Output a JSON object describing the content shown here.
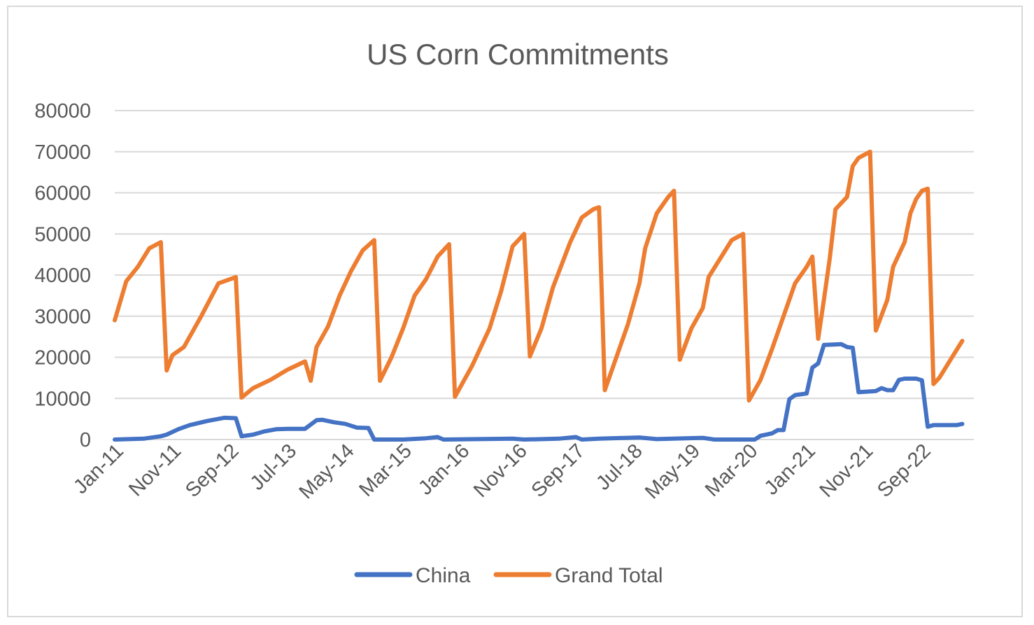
{
  "chart_data": {
    "type": "line",
    "title": "US Corn Commitments",
    "xlabel": "",
    "ylabel": "",
    "ylim": [
      0,
      80000
    ],
    "yticks": [
      0,
      10000,
      20000,
      30000,
      40000,
      50000,
      60000,
      70000,
      80000
    ],
    "x_tick_labels": [
      "Jan-11",
      "Nov-11",
      "Sep-12",
      "Jul-13",
      "May-14",
      "Mar-15",
      "Jan-16",
      "Nov-16",
      "Sep-17",
      "Jul-18",
      "May-19",
      "Mar-20",
      "Jan-21",
      "Nov-21",
      "Sep-22"
    ],
    "x_start": "Jan-11",
    "x_end": "Jun-23",
    "grid": true,
    "legend_position": "bottom",
    "series": [
      {
        "name": "China",
        "color": "#4472C4",
        "points": [
          [
            "Jan-11",
            0
          ],
          [
            "Jun-11",
            200
          ],
          [
            "Sep-11",
            800
          ],
          [
            "Oct-11",
            1200
          ],
          [
            "Dec-11",
            2500
          ],
          [
            "Feb-12",
            3500
          ],
          [
            "May-12",
            4500
          ],
          [
            "Aug-12",
            5300
          ],
          [
            "Oct-12",
            5200
          ],
          [
            "Nov-12",
            800
          ],
          [
            "Jan-13",
            1200
          ],
          [
            "Mar-13",
            2000
          ],
          [
            "May-13",
            2500
          ],
          [
            "Jul-13",
            2600
          ],
          [
            "Oct-13",
            2600
          ],
          [
            "Dec-13",
            4700
          ],
          [
            "Jan-14",
            4800
          ],
          [
            "Mar-14",
            4200
          ],
          [
            "May-14",
            3800
          ],
          [
            "Jul-14",
            2900
          ],
          [
            "Sep-14",
            2800
          ],
          [
            "Oct-14",
            0
          ],
          [
            "Mar-15",
            0
          ],
          [
            "Jul-15",
            300
          ],
          [
            "Sep-15",
            600
          ],
          [
            "Oct-15",
            0
          ],
          [
            "Oct-16",
            200
          ],
          [
            "Dec-16",
            0
          ],
          [
            "Jun-17",
            200
          ],
          [
            "Sep-17",
            600
          ],
          [
            "Oct-17",
            0
          ],
          [
            "Jan-18",
            200
          ],
          [
            "Aug-18",
            500
          ],
          [
            "Nov-18",
            100
          ],
          [
            "Apr-19",
            300
          ],
          [
            "Jul-19",
            400
          ],
          [
            "Sep-19",
            0
          ],
          [
            "Apr-20",
            0
          ],
          [
            "May-20",
            900
          ],
          [
            "Jul-20",
            1500
          ],
          [
            "Aug-20",
            2300
          ],
          [
            "Sep-20",
            2300
          ],
          [
            "Oct-20",
            9800
          ],
          [
            "Nov-20",
            10800
          ],
          [
            "Jan-21",
            11200
          ],
          [
            "Feb-21",
            17500
          ],
          [
            "Mar-21",
            18500
          ],
          [
            "Apr-21",
            23000
          ],
          [
            "Jul-21",
            23200
          ],
          [
            "Aug-21",
            22500
          ],
          [
            "Sep-21",
            22300
          ],
          [
            "Oct-21",
            11500
          ],
          [
            "Jan-22",
            11800
          ],
          [
            "Feb-22",
            12500
          ],
          [
            "Mar-22",
            12000
          ],
          [
            "Apr-22",
            12000
          ],
          [
            "May-22",
            14500
          ],
          [
            "Jun-22",
            14800
          ],
          [
            "Aug-22",
            14800
          ],
          [
            "Sep-22",
            14400
          ],
          [
            "Oct-22",
            3100
          ],
          [
            "Nov-22",
            3500
          ],
          [
            "Mar-23",
            3500
          ],
          [
            "Apr-23",
            3800
          ]
        ]
      },
      {
        "name": "Grand Total",
        "color": "#ED7D31",
        "points": [
          [
            "Jan-11",
            29000
          ],
          [
            "Mar-11",
            38500
          ],
          [
            "May-11",
            42000
          ],
          [
            "Jul-11",
            46500
          ],
          [
            "Sep-11",
            48000
          ],
          [
            "Oct-11",
            16800
          ],
          [
            "Nov-11",
            20500
          ],
          [
            "Jan-12",
            22500
          ],
          [
            "Apr-12",
            30000
          ],
          [
            "Jul-12",
            38000
          ],
          [
            "Sep-12",
            39000
          ],
          [
            "Oct-12",
            39500
          ],
          [
            "Nov-12",
            10200
          ],
          [
            "Jan-13",
            12500
          ],
          [
            "Apr-13",
            14500
          ],
          [
            "Jul-13",
            17000
          ],
          [
            "Oct-13",
            19000
          ],
          [
            "Nov-13",
            14300
          ],
          [
            "Dec-13",
            22500
          ],
          [
            "Feb-14",
            27500
          ],
          [
            "Apr-14",
            35000
          ],
          [
            "Jun-14",
            41000
          ],
          [
            "Aug-14",
            46000
          ],
          [
            "Oct-14",
            48500
          ],
          [
            "Nov-14",
            14300
          ],
          [
            "Jan-15",
            20000
          ],
          [
            "Mar-15",
            27000
          ],
          [
            "May-15",
            35000
          ],
          [
            "Jul-15",
            39000
          ],
          [
            "Sep-15",
            44500
          ],
          [
            "Nov-15",
            47500
          ],
          [
            "Dec-15",
            10400
          ],
          [
            "Mar-16",
            18000
          ],
          [
            "Jun-16",
            27000
          ],
          [
            "Aug-16",
            36000
          ],
          [
            "Oct-16",
            47000
          ],
          [
            "Dec-16",
            50000
          ],
          [
            "Jan-17",
            20200
          ],
          [
            "Mar-17",
            27000
          ],
          [
            "May-17",
            37000
          ],
          [
            "Aug-17",
            48000
          ],
          [
            "Oct-17",
            54000
          ],
          [
            "Dec-17",
            56000
          ],
          [
            "Jan-18",
            56500
          ],
          [
            "Feb-18",
            12000
          ],
          [
            "Apr-18",
            20000
          ],
          [
            "Jun-18",
            28000
          ],
          [
            "Aug-18",
            38000
          ],
          [
            "Sep-18",
            46500
          ],
          [
            "Nov-18",
            55000
          ],
          [
            "Jan-19",
            59000
          ],
          [
            "Feb-19",
            60500
          ],
          [
            "Mar-19",
            19400
          ],
          [
            "May-19",
            27000
          ],
          [
            "Jul-19",
            32000
          ],
          [
            "Aug-19",
            39500
          ],
          [
            "Oct-19",
            44000
          ],
          [
            "Dec-19",
            48500
          ],
          [
            "Feb-20",
            50000
          ],
          [
            "Mar-20",
            9500
          ],
          [
            "May-20",
            14500
          ],
          [
            "Jul-20",
            22000
          ],
          [
            "Sep-20",
            30000
          ],
          [
            "Nov-20",
            38000
          ],
          [
            "Jan-21",
            42000
          ],
          [
            "Feb-21",
            44500
          ],
          [
            "Mar-21",
            24500
          ],
          [
            "Apr-21",
            34000
          ],
          [
            "May-21",
            44000
          ],
          [
            "Jun-21",
            56000
          ],
          [
            "Aug-21",
            59000
          ],
          [
            "Sep-21",
            66500
          ],
          [
            "Oct-21",
            68500
          ],
          [
            "Dec-21",
            70000
          ],
          [
            "Jan-22",
            26500
          ],
          [
            "Mar-22",
            34000
          ],
          [
            "Apr-22",
            42000
          ],
          [
            "Jun-22",
            48000
          ],
          [
            "Jul-22",
            55000
          ],
          [
            "Aug-22",
            58500
          ],
          [
            "Sep-22",
            60500
          ],
          [
            "Oct-22",
            61000
          ],
          [
            "Nov-22",
            13500
          ],
          [
            "Dec-22",
            15000
          ],
          [
            "Feb-23",
            19500
          ],
          [
            "Apr-23",
            24000
          ]
        ]
      }
    ]
  }
}
